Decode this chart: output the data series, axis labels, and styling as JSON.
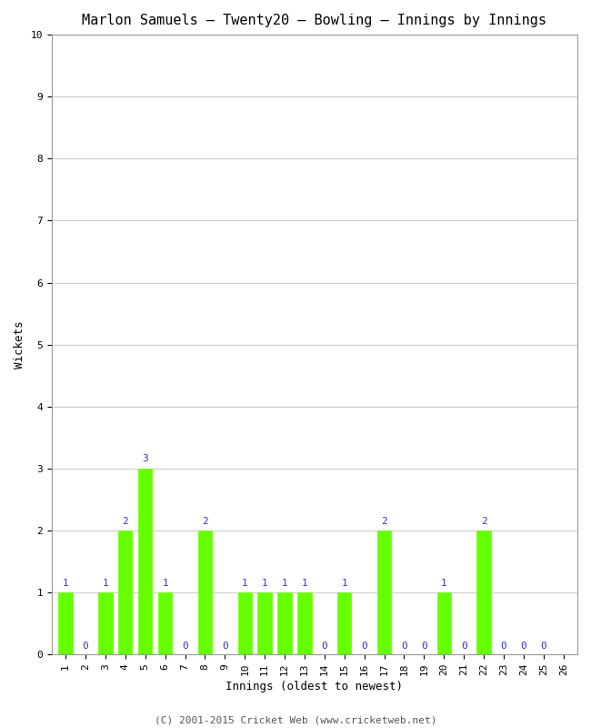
{
  "title": "Marlon Samuels – Twenty20 – Bowling – Innings by Innings",
  "xlabel": "Innings (oldest to newest)",
  "ylabel": "Wickets",
  "wickets": [
    1,
    0,
    1,
    2,
    3,
    1,
    0,
    2,
    0,
    1,
    1,
    1,
    1,
    0,
    1,
    0,
    2,
    0,
    0,
    1,
    0,
    2,
    0,
    0,
    0
  ],
  "ylim": [
    0,
    10
  ],
  "yticks": [
    0,
    1,
    2,
    3,
    4,
    5,
    6,
    7,
    8,
    9,
    10
  ],
  "bar_color": "#66ff00",
  "bar_edge_color": "#66ff00",
  "label_color_nonzero": "#3333cc",
  "label_color_zero": "#3333cc",
  "background_color": "#ffffff",
  "grid_color": "#cccccc",
  "title_fontsize": 11,
  "axis_label_fontsize": 9,
  "tick_fontsize": 8,
  "annotation_fontsize": 8,
  "footer": "(C) 2001-2015 Cricket Web (www.cricketweb.net)"
}
